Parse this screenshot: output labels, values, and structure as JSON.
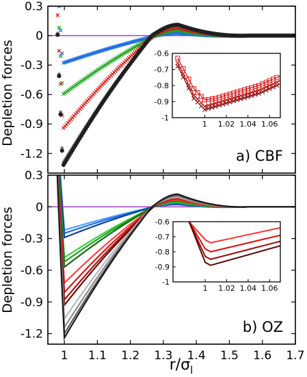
{
  "figure": {
    "xlabel": "r/σ",
    "xlabel_sub": "l"
  },
  "chart_data": [
    {
      "id": "cbf",
      "type": "scatter",
      "panel_label": "a) CBF",
      "ylabel": "Depletion forces",
      "xlim": [
        0.95,
        1.7
      ],
      "ylim": [
        -1.4,
        0.3
      ],
      "xticks": [
        1.0,
        1.1,
        1.2,
        1.3,
        1.4,
        1.5,
        1.6,
        1.7
      ],
      "xtick_labels": [],
      "yticks": [
        0.3,
        0,
        -0.3,
        -0.6,
        -0.9,
        -1.2
      ],
      "ytick_labels": [
        "0.3",
        "0",
        "-0.3",
        "-0.6",
        "-0.9",
        "-1.2"
      ],
      "zero_line_color": "#9a2fc8",
      "series": [
        {
          "color": "#1f6fe0",
          "marker": "x",
          "min": -0.28,
          "rmin": 0.995,
          "rzero": 1.28,
          "peak": 0.025
        },
        {
          "color": "#19a319",
          "marker": "x",
          "min": -0.6,
          "rmin": 0.995,
          "rzero": 1.275,
          "peak": 0.055
        },
        {
          "color": "#e01313",
          "marker": "x",
          "min": -0.95,
          "rmin": 0.995,
          "rzero": 1.27,
          "peak": 0.08
        },
        {
          "color": "#7a7a7a",
          "marker": "diamond",
          "min": -1.3,
          "rmin": 0.995,
          "rzero": 1.265,
          "peak": 0.1
        },
        {
          "color": "#202020",
          "marker": "circle",
          "min": -1.33,
          "rmin": 0.995,
          "rzero": 1.265,
          "peak": 0.11
        }
      ],
      "inset": {
        "xlim": [
          0.97,
          1.07
        ],
        "ylim": [
          -1.0,
          -0.6
        ],
        "xticks": [
          1.0,
          1.02,
          1.04,
          1.06
        ],
        "xtick_labels": [
          "1",
          "1.02",
          "1.04",
          "1.06"
        ],
        "yticks": [
          -0.6,
          -0.7,
          -0.8,
          -0.9,
          -1.0
        ],
        "ytick_labels": [
          "-0.6",
          "-0.7",
          "-0.8",
          "-0.9",
          "-1"
        ],
        "series": [
          {
            "color": "#e01313",
            "marker": "square",
            "x": [
              0.975,
              0.99,
              1.0,
              1.01,
              1.02,
              1.03,
              1.04,
              1.05,
              1.06,
              1.07
            ],
            "y": [
              -0.63,
              -0.82,
              -0.89,
              -0.88,
              -0.86,
              -0.84,
              -0.82,
              -0.8,
              -0.77,
              -0.74
            ]
          },
          {
            "color": "#c01010",
            "marker": "x",
            "x": [
              0.975,
              0.99,
              1.0,
              1.01,
              1.02,
              1.03,
              1.04,
              1.05,
              1.06,
              1.07
            ],
            "y": [
              -0.66,
              -0.86,
              -0.93,
              -0.91,
              -0.89,
              -0.87,
              -0.85,
              -0.83,
              -0.8,
              -0.77
            ]
          },
          {
            "color": "#8b0a0a",
            "marker": "x",
            "x": [
              0.975,
              0.99,
              1.0,
              1.01,
              1.02,
              1.03,
              1.04,
              1.05,
              1.06,
              1.07
            ],
            "y": [
              -0.68,
              -0.88,
              -0.95,
              -0.93,
              -0.91,
              -0.89,
              -0.87,
              -0.85,
              -0.82,
              -0.79
            ]
          }
        ]
      }
    },
    {
      "id": "oz",
      "type": "line",
      "panel_label": "b) OZ",
      "ylabel": "Depletion forces",
      "xlim": [
        0.95,
        1.7
      ],
      "ylim": [
        -1.3,
        0.3
      ],
      "xticks": [
        1.0,
        1.1,
        1.2,
        1.3,
        1.4,
        1.5,
        1.6,
        1.7
      ],
      "xtick_labels": [
        "1",
        "1.1",
        "1.2",
        "1.3",
        "1.4",
        "1.5",
        "1.6",
        "1.7"
      ],
      "yticks": [
        0.3,
        0,
        -0.3,
        -0.6,
        -0.9,
        -1.2
      ],
      "ytick_labels": [
        "0.3",
        "0",
        "-0.3",
        "-0.6",
        "-0.9",
        "-1.2"
      ],
      "zero_line_color": "#9a2fc8",
      "series": [
        {
          "color": "#4da3ff",
          "min": -0.22,
          "rmin": 1.0,
          "rzero": 1.27,
          "peak": 0.02
        },
        {
          "color": "#1f6fe0",
          "min": -0.25,
          "rmin": 1.0,
          "rzero": 1.27,
          "peak": 0.025
        },
        {
          "color": "#0b3f9a",
          "min": -0.29,
          "rmin": 1.0,
          "rzero": 1.27,
          "peak": 0.03
        },
        {
          "color": "#3fcf3f",
          "min": -0.48,
          "rmin": 1.0,
          "rzero": 1.27,
          "peak": 0.04
        },
        {
          "color": "#19a319",
          "min": -0.52,
          "rmin": 1.0,
          "rzero": 1.27,
          "peak": 0.05
        },
        {
          "color": "#0d6a0d",
          "min": -0.57,
          "rmin": 1.0,
          "rzero": 1.27,
          "peak": 0.06
        },
        {
          "color": "#ff4040",
          "min": -0.72,
          "rmin": 1.0,
          "rzero": 1.27,
          "peak": 0.065
        },
        {
          "color": "#e01313",
          "min": -0.81,
          "rmin": 1.0,
          "rzero": 1.27,
          "peak": 0.075
        },
        {
          "color": "#b00d0d",
          "min": -0.88,
          "rmin": 1.0,
          "rzero": 1.27,
          "peak": 0.085
        },
        {
          "color": "#6a0707",
          "min": -0.93,
          "rmin": 1.0,
          "rzero": 1.27,
          "peak": 0.095
        },
        {
          "color": "#b8b8b8",
          "min": -1.06,
          "rmin": 1.0,
          "rzero": 1.265,
          "peak": 0.09
        },
        {
          "color": "#8c8c8c",
          "min": -1.14,
          "rmin": 1.0,
          "rzero": 1.265,
          "peak": 0.1
        },
        {
          "color": "#5a5a5a",
          "min": -1.2,
          "rmin": 1.0,
          "rzero": 1.265,
          "peak": 0.11
        },
        {
          "color": "#1a1a1a",
          "min": -1.24,
          "rmin": 1.0,
          "rzero": 1.265,
          "peak": 0.12
        }
      ],
      "inset": {
        "xlim": [
          0.97,
          1.07
        ],
        "ylim": [
          -1.0,
          -0.6
        ],
        "xticks": [
          1.0,
          1.02,
          1.04,
          1.06
        ],
        "xtick_labels": [
          "1",
          "1.02",
          "1.04",
          "1.06"
        ],
        "yticks": [
          -0.6,
          -0.7,
          -0.8,
          -0.9,
          -1.0
        ],
        "ytick_labels": [
          "-0.6",
          "-0.7",
          "-0.8",
          "-0.9",
          "-1"
        ],
        "series": [
          {
            "color": "#ff3030",
            "x": [
              0.985,
              1.0,
              1.005,
              1.07
            ],
            "y": [
              -0.6,
              -0.72,
              -0.74,
              -0.64
            ]
          },
          {
            "color": "#d81010",
            "x": [
              0.985,
              1.0,
              1.005,
              1.07
            ],
            "y": [
              -0.6,
              -0.78,
              -0.8,
              -0.69
            ]
          },
          {
            "color": "#a00c0c",
            "x": [
              0.985,
              1.0,
              1.005,
              1.07
            ],
            "y": [
              -0.6,
              -0.83,
              -0.85,
              -0.73
            ]
          },
          {
            "color": "#5c0606",
            "x": [
              0.985,
              1.0,
              1.005,
              1.07
            ],
            "y": [
              -0.6,
              -0.87,
              -0.89,
              -0.76
            ]
          }
        ]
      }
    }
  ]
}
